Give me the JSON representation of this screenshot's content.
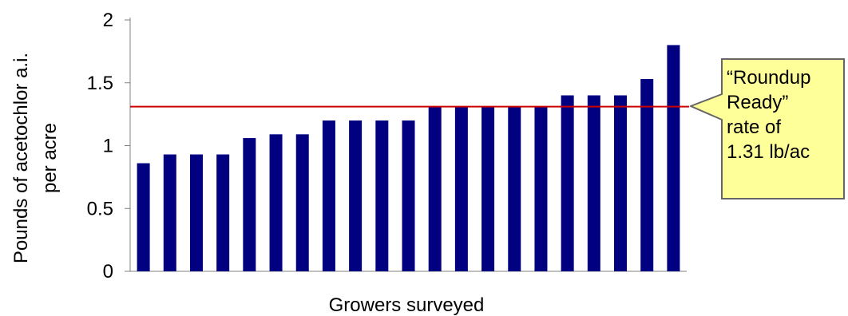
{
  "chart_data": {
    "type": "bar",
    "xlabel": "Growers surveyed",
    "ylabel_lines": [
      "Pounds of acetochlor a.i.",
      "per acre"
    ],
    "ylim": [
      0,
      2
    ],
    "yticks": [
      "0",
      "0.5",
      "1",
      "1.5",
      "2"
    ],
    "grid": false,
    "values": [
      0.86,
      0.93,
      0.93,
      0.93,
      1.06,
      1.09,
      1.09,
      1.2,
      1.2,
      1.2,
      1.2,
      1.31,
      1.31,
      1.31,
      1.31,
      1.31,
      1.4,
      1.4,
      1.4,
      1.53,
      1.8
    ],
    "bar_color": "#000080",
    "reference_line": {
      "value": 1.31,
      "color": "#cc0000"
    },
    "annotation": {
      "lines": [
        "“Roundup",
        "Ready”",
        "rate of",
        "1.31 lb/ac"
      ],
      "fill": "#ffff99",
      "border": "#666666"
    }
  }
}
